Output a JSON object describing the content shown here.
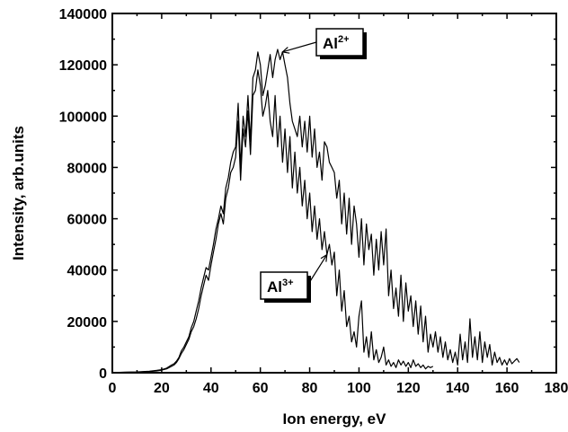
{
  "chart_data": {
    "type": "line",
    "xlabel": "Ion energy, eV",
    "ylabel": "Intensity, arb.units",
    "xlim": [
      0,
      180
    ],
    "ylim": [
      0,
      140000
    ],
    "xticks": [
      "0",
      "20",
      "40",
      "60",
      "80",
      "100",
      "120",
      "140",
      "160",
      "180"
    ],
    "yticks": [
      "0",
      "20000",
      "40000",
      "60000",
      "80000",
      "100000",
      "120000",
      "140000"
    ],
    "grid": false,
    "annotations": [
      {
        "label": "Al",
        "superscript": "2+",
        "points_to": {
          "x": 69,
          "y": 125000
        }
      },
      {
        "label": "Al",
        "superscript": "3+",
        "points_to": {
          "x": 87,
          "y": 46000
        }
      }
    ],
    "series": [
      {
        "label": "Al2+",
        "x": [
          0,
          5,
          10,
          15,
          18,
          20,
          22,
          24,
          25,
          26,
          27,
          28,
          29,
          30,
          31,
          32,
          33,
          34,
          35,
          36,
          37,
          38,
          39,
          40,
          41,
          42,
          43,
          44,
          45,
          46,
          47,
          48,
          49,
          50,
          51,
          52,
          53,
          54,
          55,
          56,
          57,
          58,
          59,
          60,
          61,
          62,
          63,
          64,
          65,
          66,
          67,
          68,
          69,
          70,
          71,
          72,
          73,
          74,
          75,
          76,
          77,
          78,
          79,
          80,
          81,
          82,
          83,
          84,
          85,
          86,
          87,
          88,
          89,
          90,
          91,
          92,
          93,
          94,
          95,
          96,
          97,
          98,
          99,
          100,
          101,
          102,
          103,
          104,
          105,
          106,
          107,
          108,
          109,
          110,
          111,
          112,
          113,
          114,
          115,
          116,
          117,
          118,
          119,
          120,
          121,
          122,
          123,
          124,
          125,
          126,
          127,
          128,
          129,
          130,
          131,
          132,
          133,
          134,
          135,
          136,
          137,
          138,
          139,
          140,
          141,
          142,
          143,
          144,
          145,
          146,
          147,
          148,
          149,
          150,
          151,
          152,
          153,
          154,
          155,
          156,
          157,
          158,
          159,
          160,
          161,
          162,
          163,
          164,
          165
        ],
        "y": [
          0,
          200,
          300,
          600,
          900,
          1200,
          1800,
          3000,
          3500,
          4500,
          6000,
          8500,
          10000,
          12000,
          14000,
          17500,
          20000,
          24000,
          28000,
          33000,
          37000,
          41000,
          40000,
          45000,
          50000,
          56000,
          60000,
          65000,
          62000,
          72000,
          76000,
          82000,
          86000,
          88000,
          105000,
          80000,
          100000,
          92000,
          108000,
          90000,
          115000,
          118000,
          125000,
          120000,
          108000,
          112000,
          118000,
          124000,
          115000,
          122000,
          126000,
          122000,
          125000,
          120000,
          115000,
          105000,
          98000,
          95000,
          92000,
          100000,
          88000,
          98000,
          86000,
          100000,
          84000,
          95000,
          80000,
          86000,
          75000,
          90000,
          88000,
          82000,
          80000,
          78000,
          68000,
          75000,
          58000,
          70000,
          54000,
          68000,
          50000,
          65000,
          58000,
          45000,
          60000,
          42000,
          58000,
          48000,
          54000,
          38000,
          52000,
          40000,
          55000,
          42000,
          56000,
          30000,
          40000,
          25000,
          33000,
          22000,
          38000,
          20000,
          35000,
          24000,
          30000,
          18000,
          28000,
          15000,
          26000,
          12000,
          22000,
          8000,
          15000,
          10000,
          16000,
          8000,
          14000,
          6000,
          12000,
          5000,
          9000,
          4000,
          8000,
          3000,
          15000,
          5000,
          12000,
          4000,
          21000,
          6000,
          14000,
          5000,
          16000,
          4000,
          12000,
          6000,
          11000,
          3000,
          8000,
          4000,
          6000,
          3000,
          5000,
          3000,
          5500,
          3500,
          4500,
          5500,
          4000
        ]
      },
      {
        "label": "Al3+",
        "x": [
          0,
          5,
          10,
          15,
          18,
          20,
          22,
          24,
          25,
          26,
          27,
          28,
          29,
          30,
          31,
          32,
          33,
          34,
          35,
          36,
          37,
          38,
          39,
          40,
          41,
          42,
          43,
          44,
          45,
          46,
          47,
          48,
          49,
          50,
          51,
          52,
          53,
          54,
          55,
          56,
          57,
          58,
          59,
          60,
          61,
          62,
          63,
          64,
          65,
          66,
          67,
          68,
          69,
          70,
          71,
          72,
          73,
          74,
          75,
          76,
          77,
          78,
          79,
          80,
          81,
          82,
          83,
          84,
          85,
          86,
          87,
          88,
          89,
          90,
          91,
          92,
          93,
          94,
          95,
          96,
          97,
          98,
          99,
          100,
          101,
          102,
          103,
          104,
          105,
          106,
          107,
          108,
          109,
          110,
          111,
          112,
          113,
          114,
          115,
          116,
          117,
          118,
          119,
          120,
          121,
          122,
          123,
          124,
          125,
          126,
          127,
          128,
          129,
          130
        ],
        "y": [
          0,
          150,
          250,
          500,
          700,
          1000,
          1500,
          2500,
          3000,
          4000,
          5500,
          7500,
          9000,
          11000,
          13000,
          16000,
          18000,
          21000,
          25000,
          30000,
          34000,
          38000,
          36000,
          42000,
          47000,
          52000,
          58000,
          62000,
          58000,
          68000,
          72000,
          78000,
          80000,
          84000,
          98000,
          75000,
          95000,
          88000,
          102000,
          85000,
          108000,
          110000,
          118000,
          112000,
          100000,
          104000,
          110000,
          98000,
          92000,
          108000,
          88000,
          100000,
          82000,
          95000,
          78000,
          92000,
          72000,
          86000,
          70000,
          80000,
          65000,
          75000,
          60000,
          70000,
          55000,
          65000,
          52000,
          60000,
          48000,
          55000,
          46000,
          50000,
          42000,
          47000,
          30000,
          40000,
          24000,
          32000,
          18000,
          22000,
          12000,
          16000,
          10000,
          22000,
          28000,
          8000,
          14000,
          6000,
          16000,
          5000,
          9000,
          4000,
          6000,
          10000,
          3000,
          5000,
          2500,
          4000,
          2000,
          5000,
          3000,
          4500,
          2500,
          4000,
          2000,
          5000,
          2500,
          3500,
          2000,
          3000,
          1500,
          2500,
          2000,
          2500
        ]
      }
    ]
  }
}
